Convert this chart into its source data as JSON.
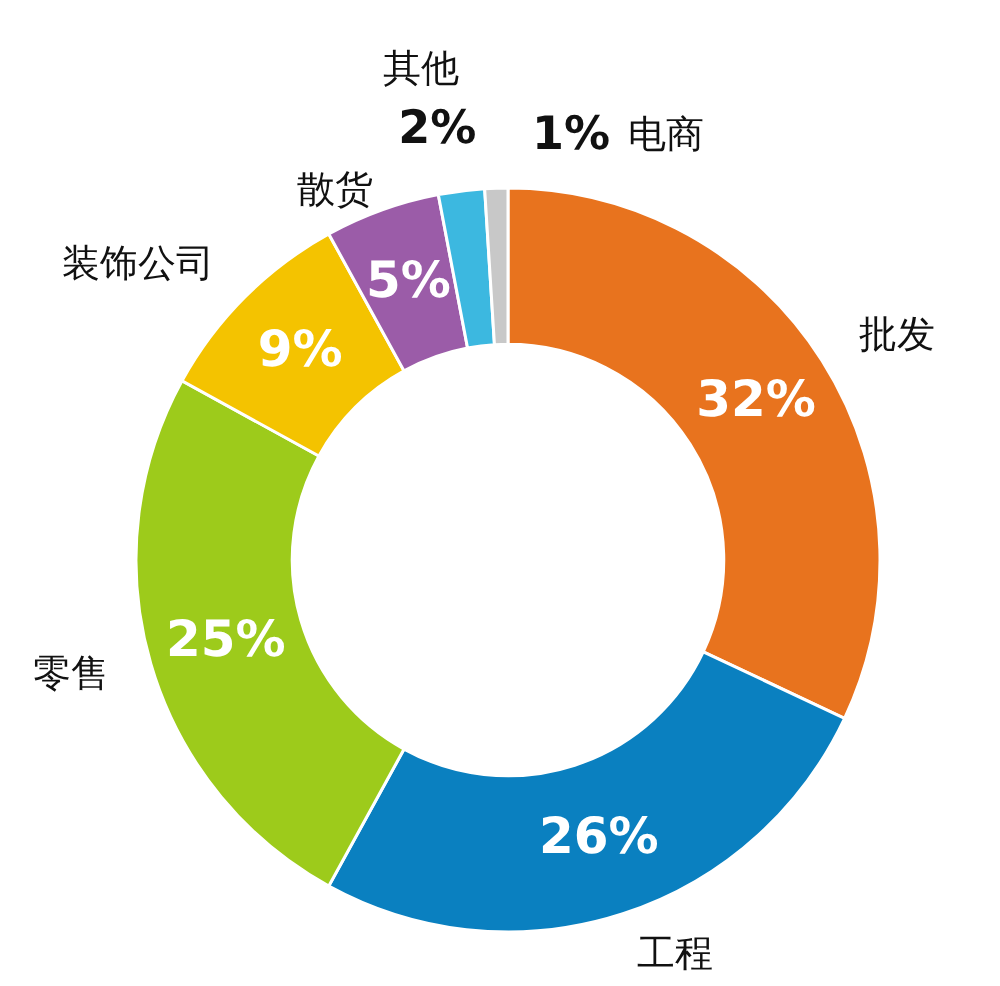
{
  "chart_data": {
    "type": "donut",
    "categories": [
      "批发",
      "工程",
      "零售",
      "装饰公司",
      "散货",
      "其他",
      "电商"
    ],
    "values": [
      32,
      26,
      25,
      9,
      5,
      2,
      1
    ],
    "colors": [
      "#e8731e",
      "#0a80c0",
      "#9dcb1b",
      "#f4c300",
      "#9b5ca8",
      "#3cb8e0",
      "#c8c8c8"
    ],
    "value_labels": [
      "32%",
      "26%",
      "25%",
      "9%",
      "5%",
      "2%",
      "1%"
    ]
  }
}
